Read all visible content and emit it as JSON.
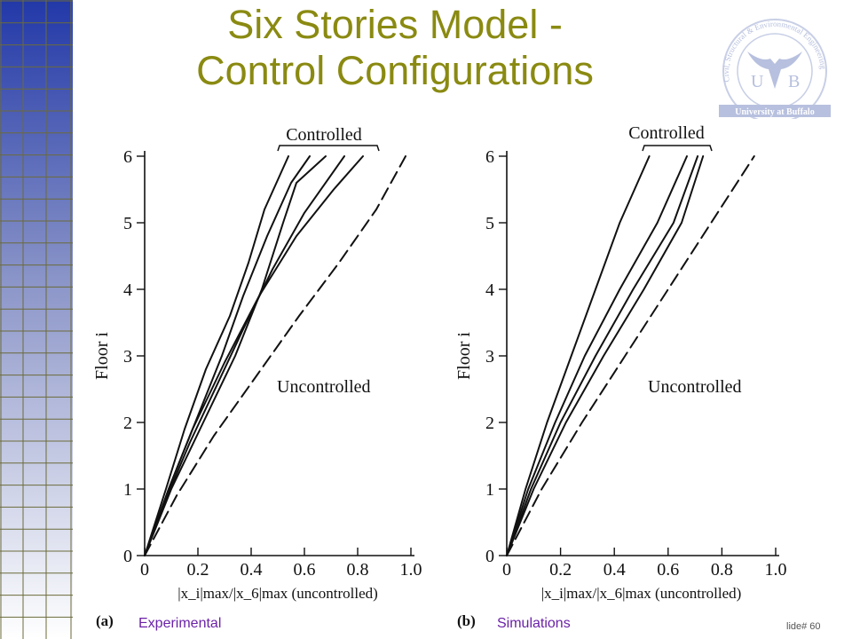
{
  "slide": {
    "title_line1": "Six Stories Model -",
    "title_line2": "Control Configurations",
    "slide_number": "lide# 60",
    "colors": {
      "title": "#8a8a12",
      "caption": "#6b22a8",
      "grid_top": "#2238a8",
      "grid_bottom": "#ffffff"
    }
  },
  "logo": {
    "letters_left": "U",
    "letters_right": "B",
    "banner": "University at Buffalo",
    "ring_text": "Civil, Structural & Environmental Engineering",
    "icon": "bull-horns-icon"
  },
  "chart_data": [
    {
      "type": "line",
      "panel_label": "(a)",
      "caption": "Experimental",
      "xlabel": "|x_i|max/|x_6|max (uncontrolled)",
      "ylabel": "Floor i",
      "xlim": [
        0,
        1.0
      ],
      "ylim": [
        0,
        6
      ],
      "x_ticks": [
        "0",
        "0.2",
        "0.4",
        "0.6",
        "0.8",
        "1.0"
      ],
      "y_ticks": [
        "0",
        "1",
        "2",
        "3",
        "4",
        "5",
        "6"
      ],
      "grid": false,
      "annotations": {
        "controlled": "Controlled",
        "uncontrolled": "Uncontrolled"
      },
      "series": [
        {
          "group": "controlled",
          "style": "solid",
          "points": [
            [
              0,
              0
            ],
            [
              0.08,
              0.85
            ],
            [
              0.17,
              1.7
            ],
            [
              0.27,
              2.55
            ],
            [
              0.37,
              3.4
            ],
            [
              0.48,
              4.3
            ],
            [
              0.6,
              5.15
            ],
            [
              0.75,
              6
            ]
          ]
        },
        {
          "group": "controlled",
          "style": "solid",
          "points": [
            [
              0,
              0
            ],
            [
              0.09,
              1
            ],
            [
              0.18,
              1.9
            ],
            [
              0.3,
              2.9
            ],
            [
              0.43,
              3.9
            ],
            [
              0.57,
              4.8
            ],
            [
              0.71,
              5.5
            ],
            [
              0.82,
              6
            ]
          ]
        },
        {
          "group": "controlled",
          "style": "solid",
          "points": [
            [
              0,
              0
            ],
            [
              0.1,
              1
            ],
            [
              0.22,
              2
            ],
            [
              0.34,
              3
            ],
            [
              0.44,
              4
            ],
            [
              0.52,
              5
            ],
            [
              0.57,
              5.6
            ],
            [
              0.68,
              6
            ]
          ]
        },
        {
          "group": "controlled",
          "style": "solid",
          "points": [
            [
              0,
              0
            ],
            [
              0.1,
              1.1
            ],
            [
              0.2,
              2.1
            ],
            [
              0.29,
              3
            ],
            [
              0.37,
              3.9
            ],
            [
              0.46,
              4.8
            ],
            [
              0.55,
              5.6
            ],
            [
              0.62,
              6
            ]
          ]
        },
        {
          "group": "controlled",
          "style": "solid",
          "points": [
            [
              0,
              0
            ],
            [
              0.08,
              1
            ],
            [
              0.15,
              1.9
            ],
            [
              0.23,
              2.8
            ],
            [
              0.32,
              3.6
            ],
            [
              0.39,
              4.4
            ],
            [
              0.45,
              5.2
            ],
            [
              0.54,
              6
            ]
          ]
        },
        {
          "group": "uncontrolled",
          "style": "dashed",
          "points": [
            [
              0,
              0
            ],
            [
              0.12,
              0.9
            ],
            [
              0.26,
              1.8
            ],
            [
              0.42,
              2.7
            ],
            [
              0.58,
              3.6
            ],
            [
              0.73,
              4.4
            ],
            [
              0.87,
              5.2
            ],
            [
              0.98,
              6
            ]
          ]
        }
      ]
    },
    {
      "type": "line",
      "panel_label": "(b)",
      "caption": "Simulations",
      "xlabel": "|x_i|max/|x_6|max (uncontrolled)",
      "ylabel": "Floor i",
      "xlim": [
        0,
        1.0
      ],
      "ylim": [
        0,
        6
      ],
      "x_ticks": [
        "0",
        "0.2",
        "0.4",
        "0.6",
        "0.8",
        "1.0"
      ],
      "y_ticks": [
        "0",
        "1",
        "2",
        "3",
        "4",
        "5",
        "6"
      ],
      "grid": false,
      "annotations": {
        "controlled": "Controlled",
        "uncontrolled": "Uncontrolled"
      },
      "series": [
        {
          "group": "controlled",
          "style": "solid",
          "points": [
            [
              0,
              0
            ],
            [
              0.07,
              1
            ],
            [
              0.15,
              2
            ],
            [
              0.24,
              3
            ],
            [
              0.33,
              4
            ],
            [
              0.42,
              5
            ],
            [
              0.53,
              6
            ]
          ]
        },
        {
          "group": "controlled",
          "style": "solid",
          "points": [
            [
              0,
              0
            ],
            [
              0.08,
              1
            ],
            [
              0.18,
              2
            ],
            [
              0.29,
              3
            ],
            [
              0.42,
              4
            ],
            [
              0.56,
              5
            ],
            [
              0.67,
              6
            ]
          ]
        },
        {
          "group": "controlled",
          "style": "solid",
          "points": [
            [
              0,
              0
            ],
            [
              0.09,
              1
            ],
            [
              0.2,
              2
            ],
            [
              0.33,
              3
            ],
            [
              0.47,
              4
            ],
            [
              0.62,
              5
            ],
            [
              0.71,
              6
            ]
          ]
        },
        {
          "group": "controlled",
          "style": "solid",
          "points": [
            [
              0,
              0
            ],
            [
              0.1,
              1
            ],
            [
              0.22,
              2
            ],
            [
              0.36,
              3
            ],
            [
              0.51,
              4
            ],
            [
              0.65,
              5
            ],
            [
              0.73,
              6
            ]
          ]
        },
        {
          "group": "uncontrolled",
          "style": "dashed",
          "points": [
            [
              0,
              0
            ],
            [
              0.13,
              1
            ],
            [
              0.28,
              2
            ],
            [
              0.44,
              3
            ],
            [
              0.6,
              4
            ],
            [
              0.76,
              5
            ],
            [
              0.92,
              6
            ]
          ]
        }
      ]
    }
  ]
}
